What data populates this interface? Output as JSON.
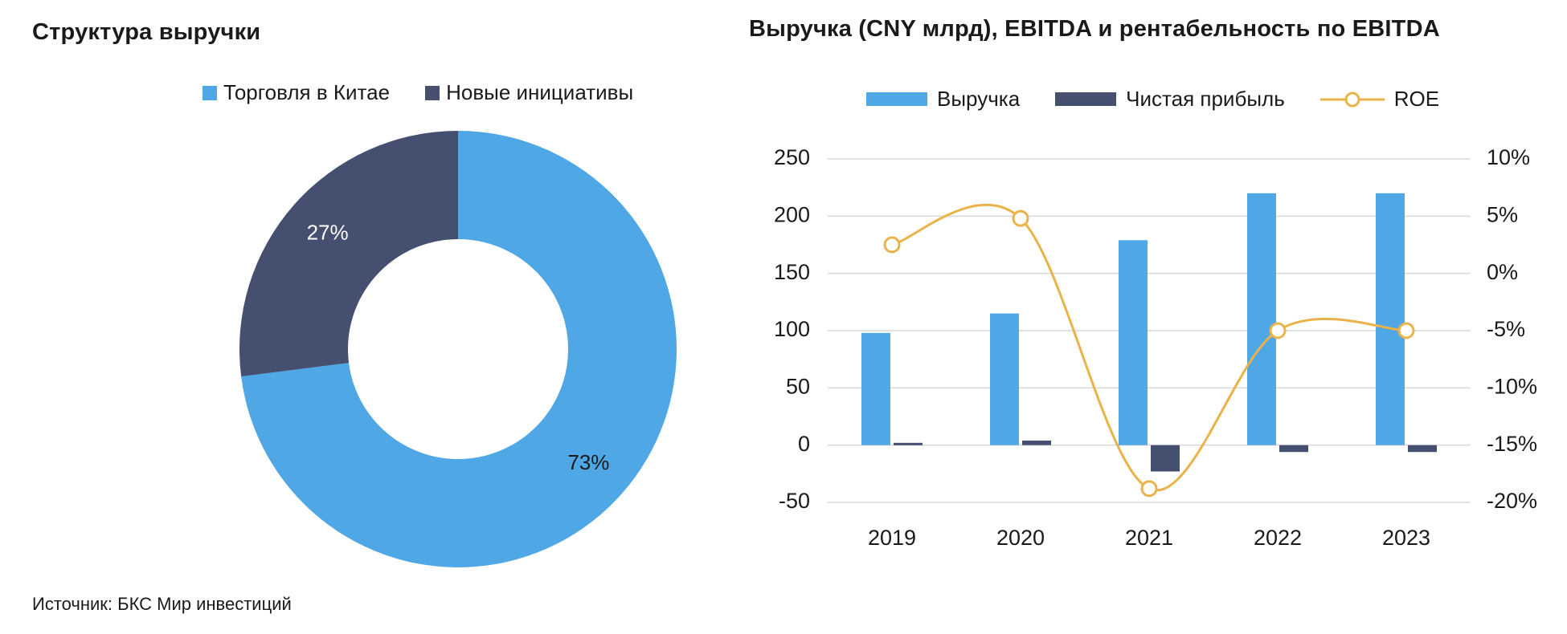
{
  "donut": {
    "title": "Структура выручки",
    "legend": [
      {
        "label": "Торговля в Китае",
        "color": "#4fa7e6"
      },
      {
        "label": "Новые инициативы",
        "color": "#454f6f"
      }
    ]
  },
  "bar": {
    "title": "Выручка (CNY млрд), EBITDA и рентабельность по EBITDA",
    "legend": [
      {
        "label": "Выручка",
        "color": "#4fa7e6"
      },
      {
        "label": "Чистая прибыль",
        "color": "#454f6f"
      },
      {
        "label": "ROE",
        "color": "#e9b34a"
      }
    ]
  },
  "source": "Источник: БКС Мир инвестиций",
  "chart_data": [
    {
      "type": "pie",
      "title": "Структура выручки",
      "labels": [
        "Торговля в Китае",
        "Новые инициативы"
      ],
      "values": [
        73,
        27
      ],
      "value_labels": [
        "73%",
        "27%"
      ],
      "colors": [
        "#4fa7e6",
        "#454f6f"
      ],
      "donut": true,
      "legend_position": "top"
    },
    {
      "type": "bar",
      "title": "Выручка (CNY млрд), EBITDA и рентабельность по EBITDA",
      "categories": [
        "2019",
        "2020",
        "2021",
        "2022",
        "2023"
      ],
      "series": [
        {
          "name": "Выручка",
          "type": "bar",
          "axis": "left",
          "color": "#4fa7e6",
          "values": [
            98,
            115,
            179,
            220,
            220
          ]
        },
        {
          "name": "Чистая прибыль",
          "type": "bar",
          "axis": "left",
          "color": "#454f6f",
          "values": [
            2,
            4,
            -23,
            -6,
            -6
          ]
        },
        {
          "name": "ROE",
          "type": "line",
          "axis": "right",
          "color": "#e9b34a",
          "values": [
            2.5,
            4.8,
            -18.8,
            -5.0,
            -5.0
          ]
        }
      ],
      "y_left": {
        "min": -50,
        "max": 250,
        "ticks": [
          250,
          200,
          150,
          100,
          50,
          0,
          -50
        ]
      },
      "y_right": {
        "min": -20,
        "max": 10,
        "ticks": [
          "10%",
          "5%",
          "0%",
          "-5%",
          "-10%",
          "-15%",
          "-20%"
        ]
      },
      "grid": true,
      "legend_position": "top"
    }
  ]
}
